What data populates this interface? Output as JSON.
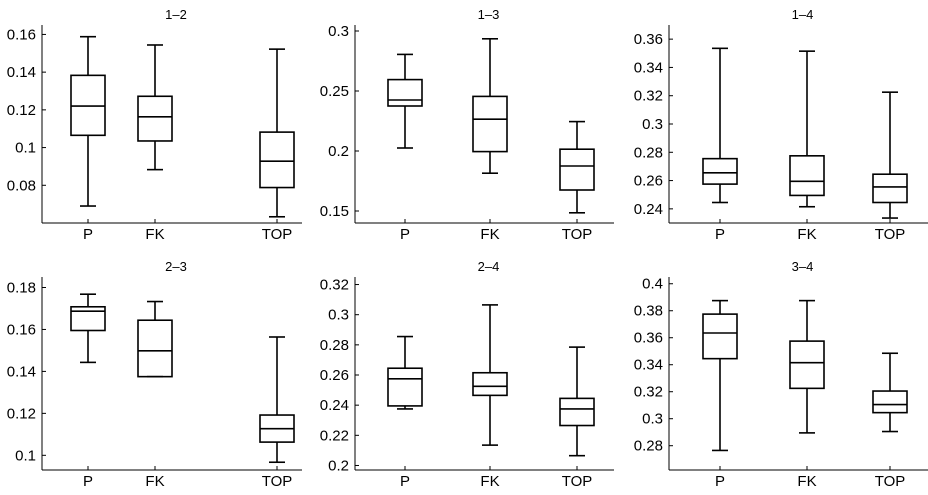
{
  "chart_data": [
    {
      "type": "box",
      "title": "1–2",
      "categories": [
        "P",
        "FK",
        "TOP"
      ],
      "ylim": [
        0.06,
        0.165
      ],
      "yticks": [
        0.08,
        0.1,
        0.12,
        0.14,
        0.16
      ],
      "ytick_labels": [
        "0.08",
        "0.1",
        "0.12",
        "0.14",
        "0.16"
      ],
      "boxes": [
        {
          "min": 0.069,
          "q1": 0.1065,
          "median": 0.122,
          "q3": 0.1383,
          "max": 0.1588
        },
        {
          "min": 0.0883,
          "q1": 0.1035,
          "median": 0.1163,
          "q3": 0.1272,
          "max": 0.1544
        },
        {
          "min": 0.0633,
          "q1": 0.0788,
          "median": 0.0928,
          "q3": 0.1082,
          "max": 0.1522
        }
      ]
    },
    {
      "type": "box",
      "title": "1–3",
      "categories": [
        "P",
        "FK",
        "TOP"
      ],
      "ylim": [
        0.14,
        0.305
      ],
      "yticks": [
        0.15,
        0.2,
        0.25,
        0.3
      ],
      "ytick_labels": [
        "0.15",
        "0.2",
        "0.25",
        "0.3"
      ],
      "boxes": [
        {
          "min": 0.2025,
          "q1": 0.2375,
          "median": 0.2425,
          "q3": 0.2595,
          "max": 0.2805
        },
        {
          "min": 0.1815,
          "q1": 0.1995,
          "median": 0.2265,
          "q3": 0.2455,
          "max": 0.2935
        },
        {
          "min": 0.1485,
          "q1": 0.1675,
          "median": 0.1875,
          "q3": 0.2015,
          "max": 0.2245
        }
      ]
    },
    {
      "type": "box",
      "title": "1–4",
      "categories": [
        "P",
        "FK",
        "TOP"
      ],
      "ylim": [
        0.23,
        0.37
      ],
      "yticks": [
        0.24,
        0.26,
        0.28,
        0.3,
        0.32,
        0.34,
        0.36
      ],
      "ytick_labels": [
        "0.24",
        "0.26",
        "0.28",
        "0.3",
        "0.32",
        "0.34",
        "0.36"
      ],
      "boxes": [
        {
          "min": 0.2445,
          "q1": 0.2575,
          "median": 0.2655,
          "q3": 0.2755,
          "max": 0.3535
        },
        {
          "min": 0.2415,
          "q1": 0.2495,
          "median": 0.2595,
          "q3": 0.2775,
          "max": 0.3515
        },
        {
          "min": 0.2335,
          "q1": 0.2445,
          "median": 0.2555,
          "q3": 0.2645,
          "max": 0.3225
        }
      ]
    },
    {
      "type": "box",
      "title": "2–3",
      "categories": [
        "P",
        "FK",
        "TOP"
      ],
      "ylim": [
        0.093,
        0.185
      ],
      "yticks": [
        0.1,
        0.12,
        0.14,
        0.16,
        0.18
      ],
      "ytick_labels": [
        "0.1",
        "0.12",
        "0.14",
        "0.16",
        "0.18"
      ],
      "boxes": [
        {
          "min": 0.1443,
          "q1": 0.1595,
          "median": 0.1687,
          "q3": 0.1708,
          "max": 0.1768
        },
        {
          "min": 0.1375,
          "q1": 0.1375,
          "median": 0.1498,
          "q3": 0.1644,
          "max": 0.1733
        },
        {
          "min": 0.0967,
          "q1": 0.1063,
          "median": 0.1127,
          "q3": 0.1192,
          "max": 0.1564
        }
      ]
    },
    {
      "type": "box",
      "title": "2–4",
      "categories": [
        "P",
        "FK",
        "TOP"
      ],
      "ylim": [
        0.197,
        0.325
      ],
      "yticks": [
        0.2,
        0.22,
        0.24,
        0.26,
        0.28,
        0.3,
        0.32
      ],
      "ytick_labels": [
        "0.2",
        "0.22",
        "0.24",
        "0.26",
        "0.28",
        "0.3",
        "0.32"
      ],
      "boxes": [
        {
          "min": 0.2375,
          "q1": 0.2395,
          "median": 0.2575,
          "q3": 0.2645,
          "max": 0.2855
        },
        {
          "min": 0.2135,
          "q1": 0.2465,
          "median": 0.2525,
          "q3": 0.2615,
          "max": 0.3065
        },
        {
          "min": 0.2065,
          "q1": 0.2265,
          "median": 0.2375,
          "q3": 0.2445,
          "max": 0.2785
        }
      ]
    },
    {
      "type": "box",
      "title": "3–4",
      "categories": [
        "P",
        "FK",
        "TOP"
      ],
      "ylim": [
        0.262,
        0.405
      ],
      "yticks": [
        0.28,
        0.3,
        0.32,
        0.34,
        0.36,
        0.38,
        0.4
      ],
      "ytick_labels": [
        "0.28",
        "0.3",
        "0.32",
        "0.34",
        "0.36",
        "0.38",
        "0.4"
      ],
      "boxes": [
        {
          "min": 0.2765,
          "q1": 0.3445,
          "median": 0.3635,
          "q3": 0.3775,
          "max": 0.3875
        },
        {
          "min": 0.2895,
          "q1": 0.3225,
          "median": 0.3415,
          "q3": 0.3575,
          "max": 0.3875
        },
        {
          "min": 0.2905,
          "q1": 0.3045,
          "median": 0.3105,
          "q3": 0.3205,
          "max": 0.3485
        }
      ]
    }
  ]
}
